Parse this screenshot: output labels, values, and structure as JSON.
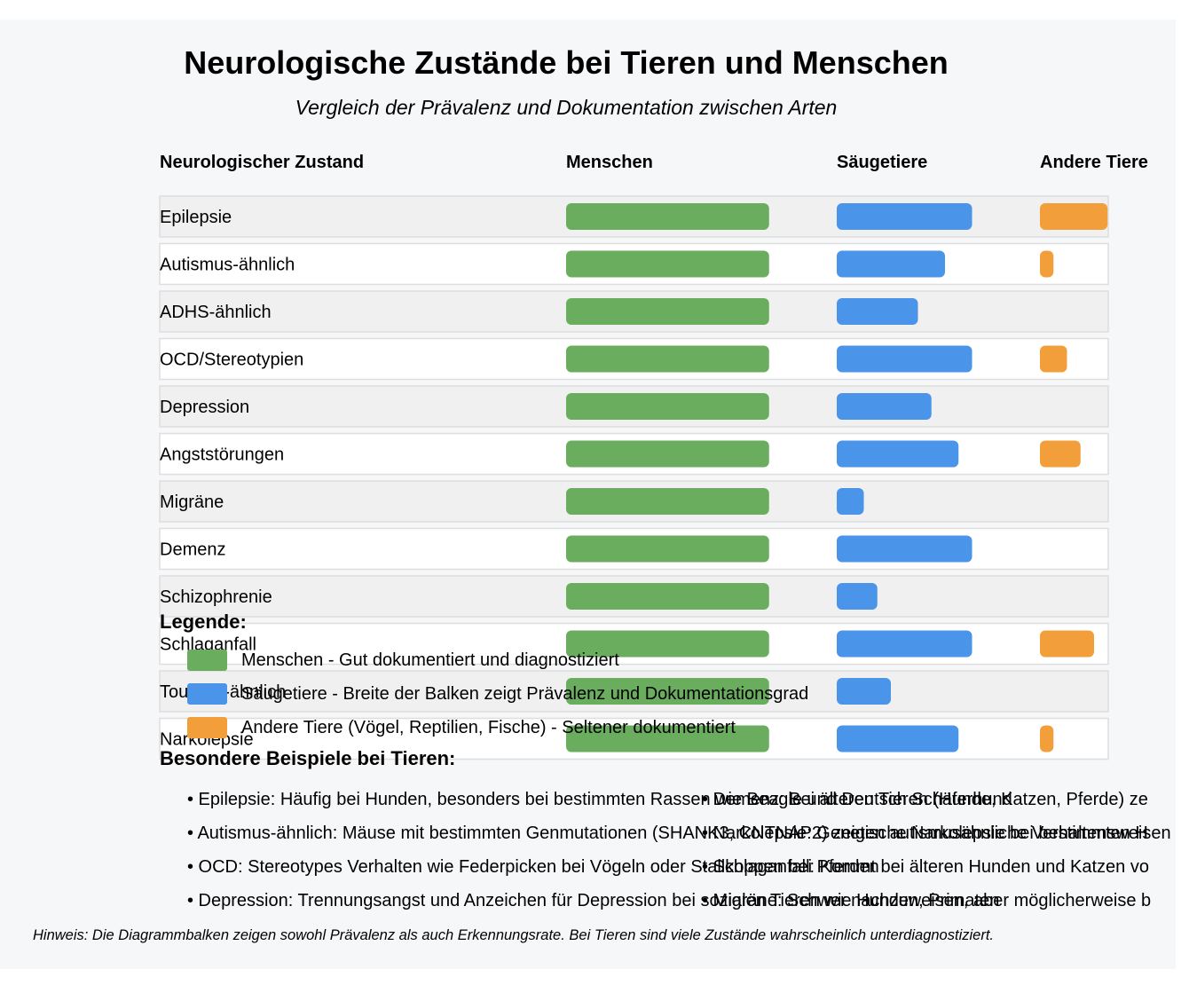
{
  "chart_data": {
    "type": "bar",
    "title": "Neurologische Zustände bei Tieren und Menschen",
    "subtitle": "Vergleich der Prävalenz und Dokumentation zwischen Arten",
    "column_headers": {
      "condition": "Neurologischer Zustand",
      "humans": "Menschen",
      "mammals": "Säugetiere",
      "others": "Andere Tiere"
    },
    "categories": [
      "Epilepsie",
      "Autismus-ähnlich",
      "ADHS-ähnlich",
      "OCD/Stereotypien",
      "Depression",
      "Angststörungen",
      "Migräne",
      "Demenz",
      "Schizophrenie",
      "Schlaganfall",
      "Tourette-ähnlich",
      "Narkolepsie"
    ],
    "scale_max": 15,
    "series": [
      {
        "key": "humans",
        "color": "#6aad5e",
        "values": [
          15,
          15,
          15,
          15,
          15,
          15,
          15,
          15,
          15,
          15,
          15,
          15
        ]
      },
      {
        "key": "mammals",
        "color": "#4a94ea",
        "values": [
          10,
          8,
          6,
          10,
          7,
          9,
          2,
          10,
          3,
          10,
          4,
          9
        ]
      },
      {
        "key": "others",
        "color": "#f29f3b",
        "values": [
          5,
          1,
          0,
          2,
          0,
          3,
          0,
          0,
          0,
          4,
          0,
          1
        ]
      }
    ],
    "grid": false
  },
  "legend": {
    "title": "Legende:",
    "items": [
      {
        "color": "#6aad5e",
        "label": "Menschen - Gut dokumentiert und diagnostiziert"
      },
      {
        "color": "#4a94ea",
        "label": "Säugetiere - Breite der Balken zeigt Prävalenz und Dokumentationsgrad"
      },
      {
        "color": "#f29f3b",
        "label": "Andere Tiere (Vögel, Reptilien, Fische) - Seltener dokumentiert"
      }
    ]
  },
  "examples": {
    "title": "Besondere Beispiele bei Tieren:",
    "left": [
      "• Epilepsie: Häufig bei Hunden, besonders bei bestimmten Rassen wie Beagle und Deutsch Schäferhund",
      "• Autismus-ähnlich: Mäuse mit bestimmten Genmutationen (SHANK3, CNTNAP2) zeigen autismusähnliche Verhaltensweisen",
      "• OCD: Stereotypes Verhalten wie Federpicken bei Vögeln oder Stallkoppen bei Pferden",
      "• Depression: Trennungsangst und Anzeichen für Depression bei sozialen Tieren wie Hunden, Primaten"
    ],
    "right": [
      "• Demenz: Bei älteren Tieren (Hunde, Katzen, Pferde) ze",
      "• Narkolepsie: Genetische Narkolepsie bei bestimmten H",
      "• Schlaganfall: Kommt bei älteren Hunden und Katzen vo",
      "• Migräne: Schwer nachzuweisen, aber möglicherweise b"
    ]
  },
  "footnote": "Hinweis: Die Diagrammbalken zeigen sowohl Prävalenz als auch Erkennungsrate. Bei Tieren sind viele Zustände wahrscheinlich unterdiagnostiziert."
}
